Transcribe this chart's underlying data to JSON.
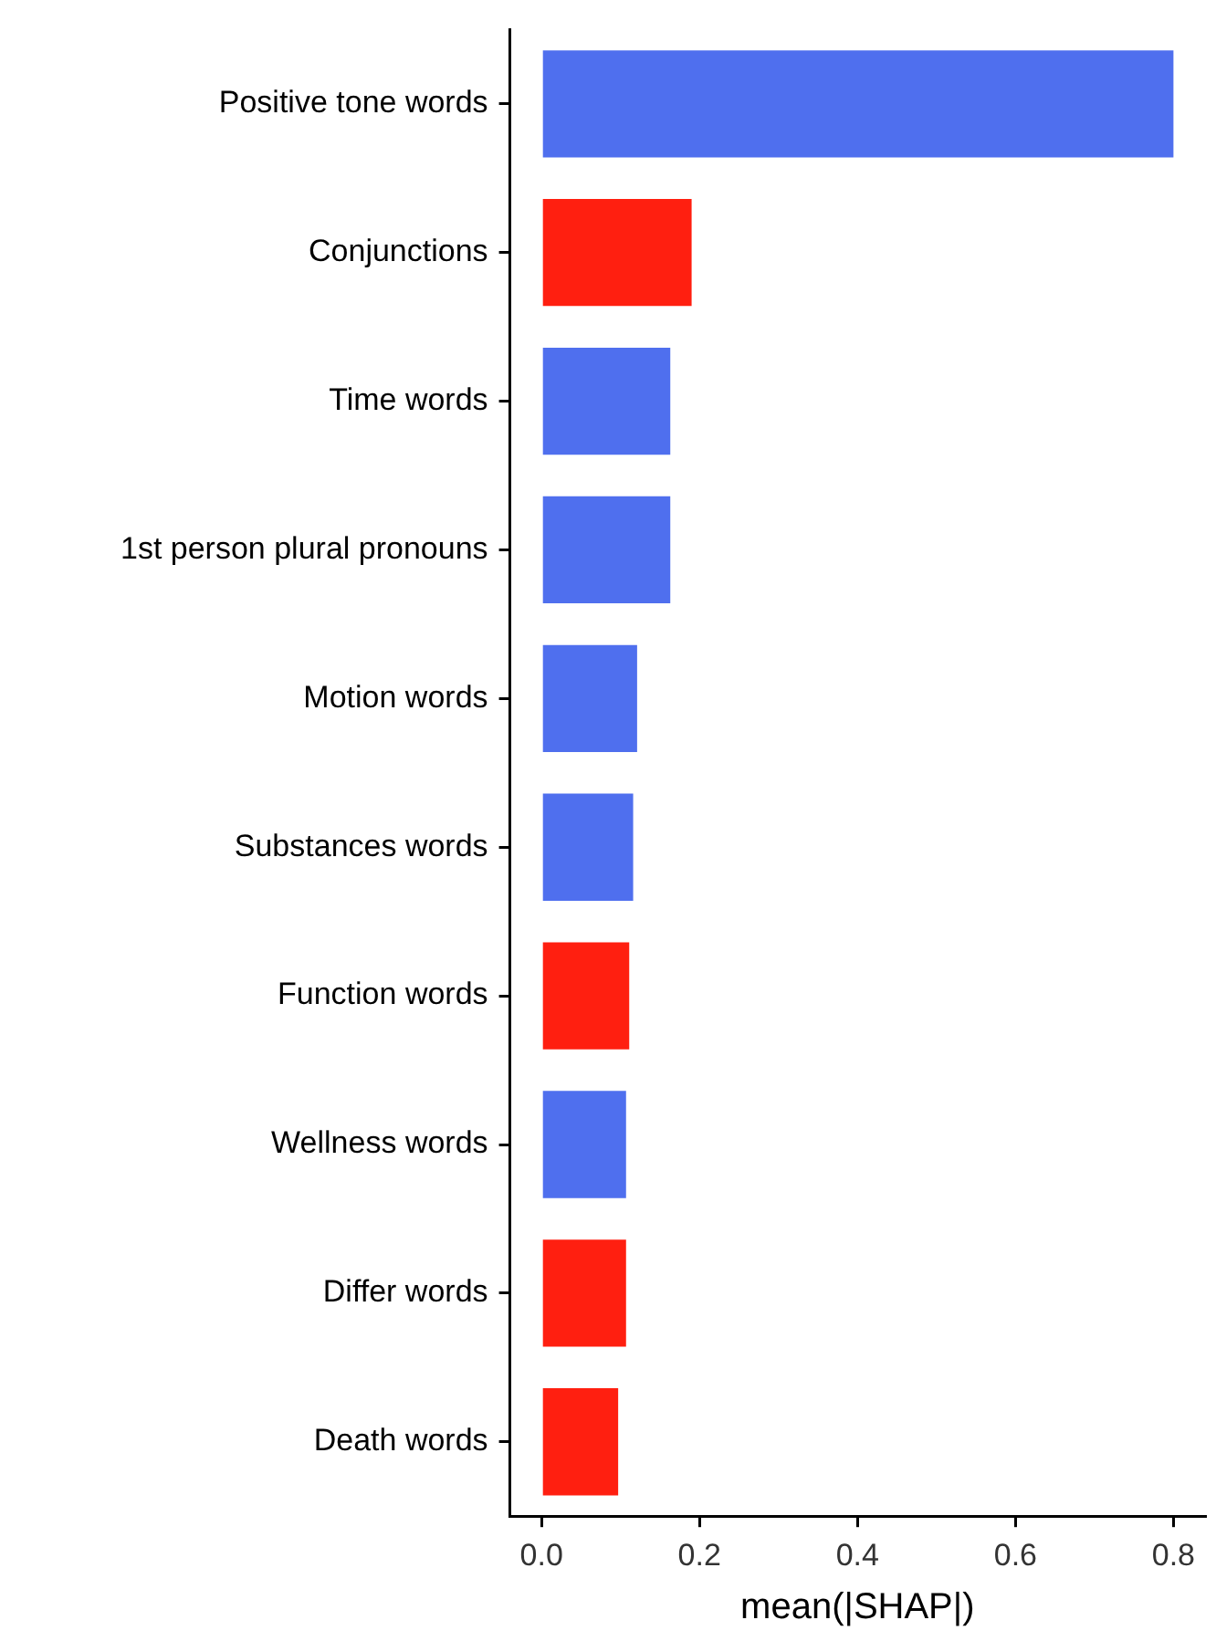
{
  "chart_data": {
    "type": "bar",
    "orientation": "horizontal",
    "xlabel": "mean(|SHAP|)",
    "categories": [
      "Positive tone words",
      "Conjunctions",
      "Time words",
      "1st person plural pronouns",
      "Motion words",
      "Substances words",
      "Function words",
      "Wellness words",
      "Differ words",
      "Death words"
    ],
    "values": [
      0.8,
      0.19,
      0.163,
      0.163,
      0.121,
      0.116,
      0.111,
      0.107,
      0.107,
      0.097
    ],
    "colors": [
      "#4f6fee",
      "#ff1f10",
      "#4f6fee",
      "#4f6fee",
      "#4f6fee",
      "#4f6fee",
      "#ff1f10",
      "#4f6fee",
      "#ff1f10",
      "#ff1f10"
    ],
    "xlim": [
      -0.04,
      0.84
    ],
    "xticks": [
      {
        "value": 0,
        "label": "0.0"
      },
      0.2,
      0.4,
      0.6,
      0.8
    ],
    "grid": false,
    "legend": false
  }
}
